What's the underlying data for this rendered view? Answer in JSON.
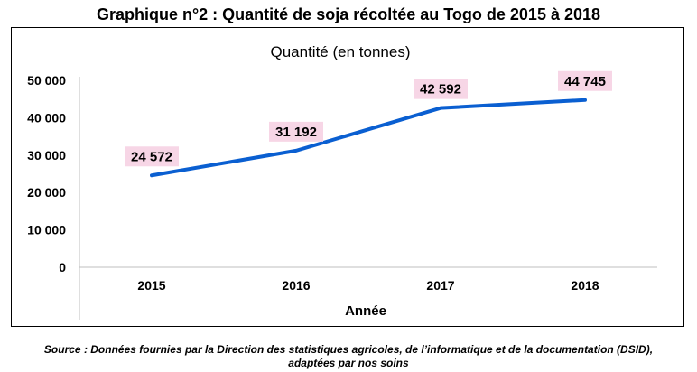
{
  "header": {
    "title": "Graphique n°2 : Quantité de soja récoltée au Togo de 2015 à 2018"
  },
  "footer": {
    "source_line1": "Source : Données fournies par la Direction des statistiques agricoles, de l’informatique et de la documentation (DSID),",
    "source_line2": "adaptées par nos soins"
  },
  "colors": {
    "series_line": "#0a5fd1",
    "label_bg": "#f7d6e6",
    "gridline": "#d9d9d9",
    "axis": "#bfbfbf"
  },
  "chart_data": {
    "type": "line",
    "title": "",
    "ylabel": "",
    "xlabel": "Année",
    "categories": [
      "2015",
      "2016",
      "2017",
      "2018"
    ],
    "series": [
      {
        "name": "Quantité (en tonnes)",
        "values": [
          24572,
          31192,
          42592,
          44745
        ],
        "labels": [
          "24 572",
          "31 192",
          "42 592",
          "44 745"
        ]
      }
    ],
    "ylim": [
      0,
      50000
    ],
    "yticks": [
      0,
      10000,
      20000,
      30000,
      40000,
      50000
    ],
    "ytick_labels": [
      "0",
      "10 000",
      "20 000",
      "30 000",
      "40 000",
      "50 000"
    ],
    "grid": false,
    "legend": "top-center"
  }
}
